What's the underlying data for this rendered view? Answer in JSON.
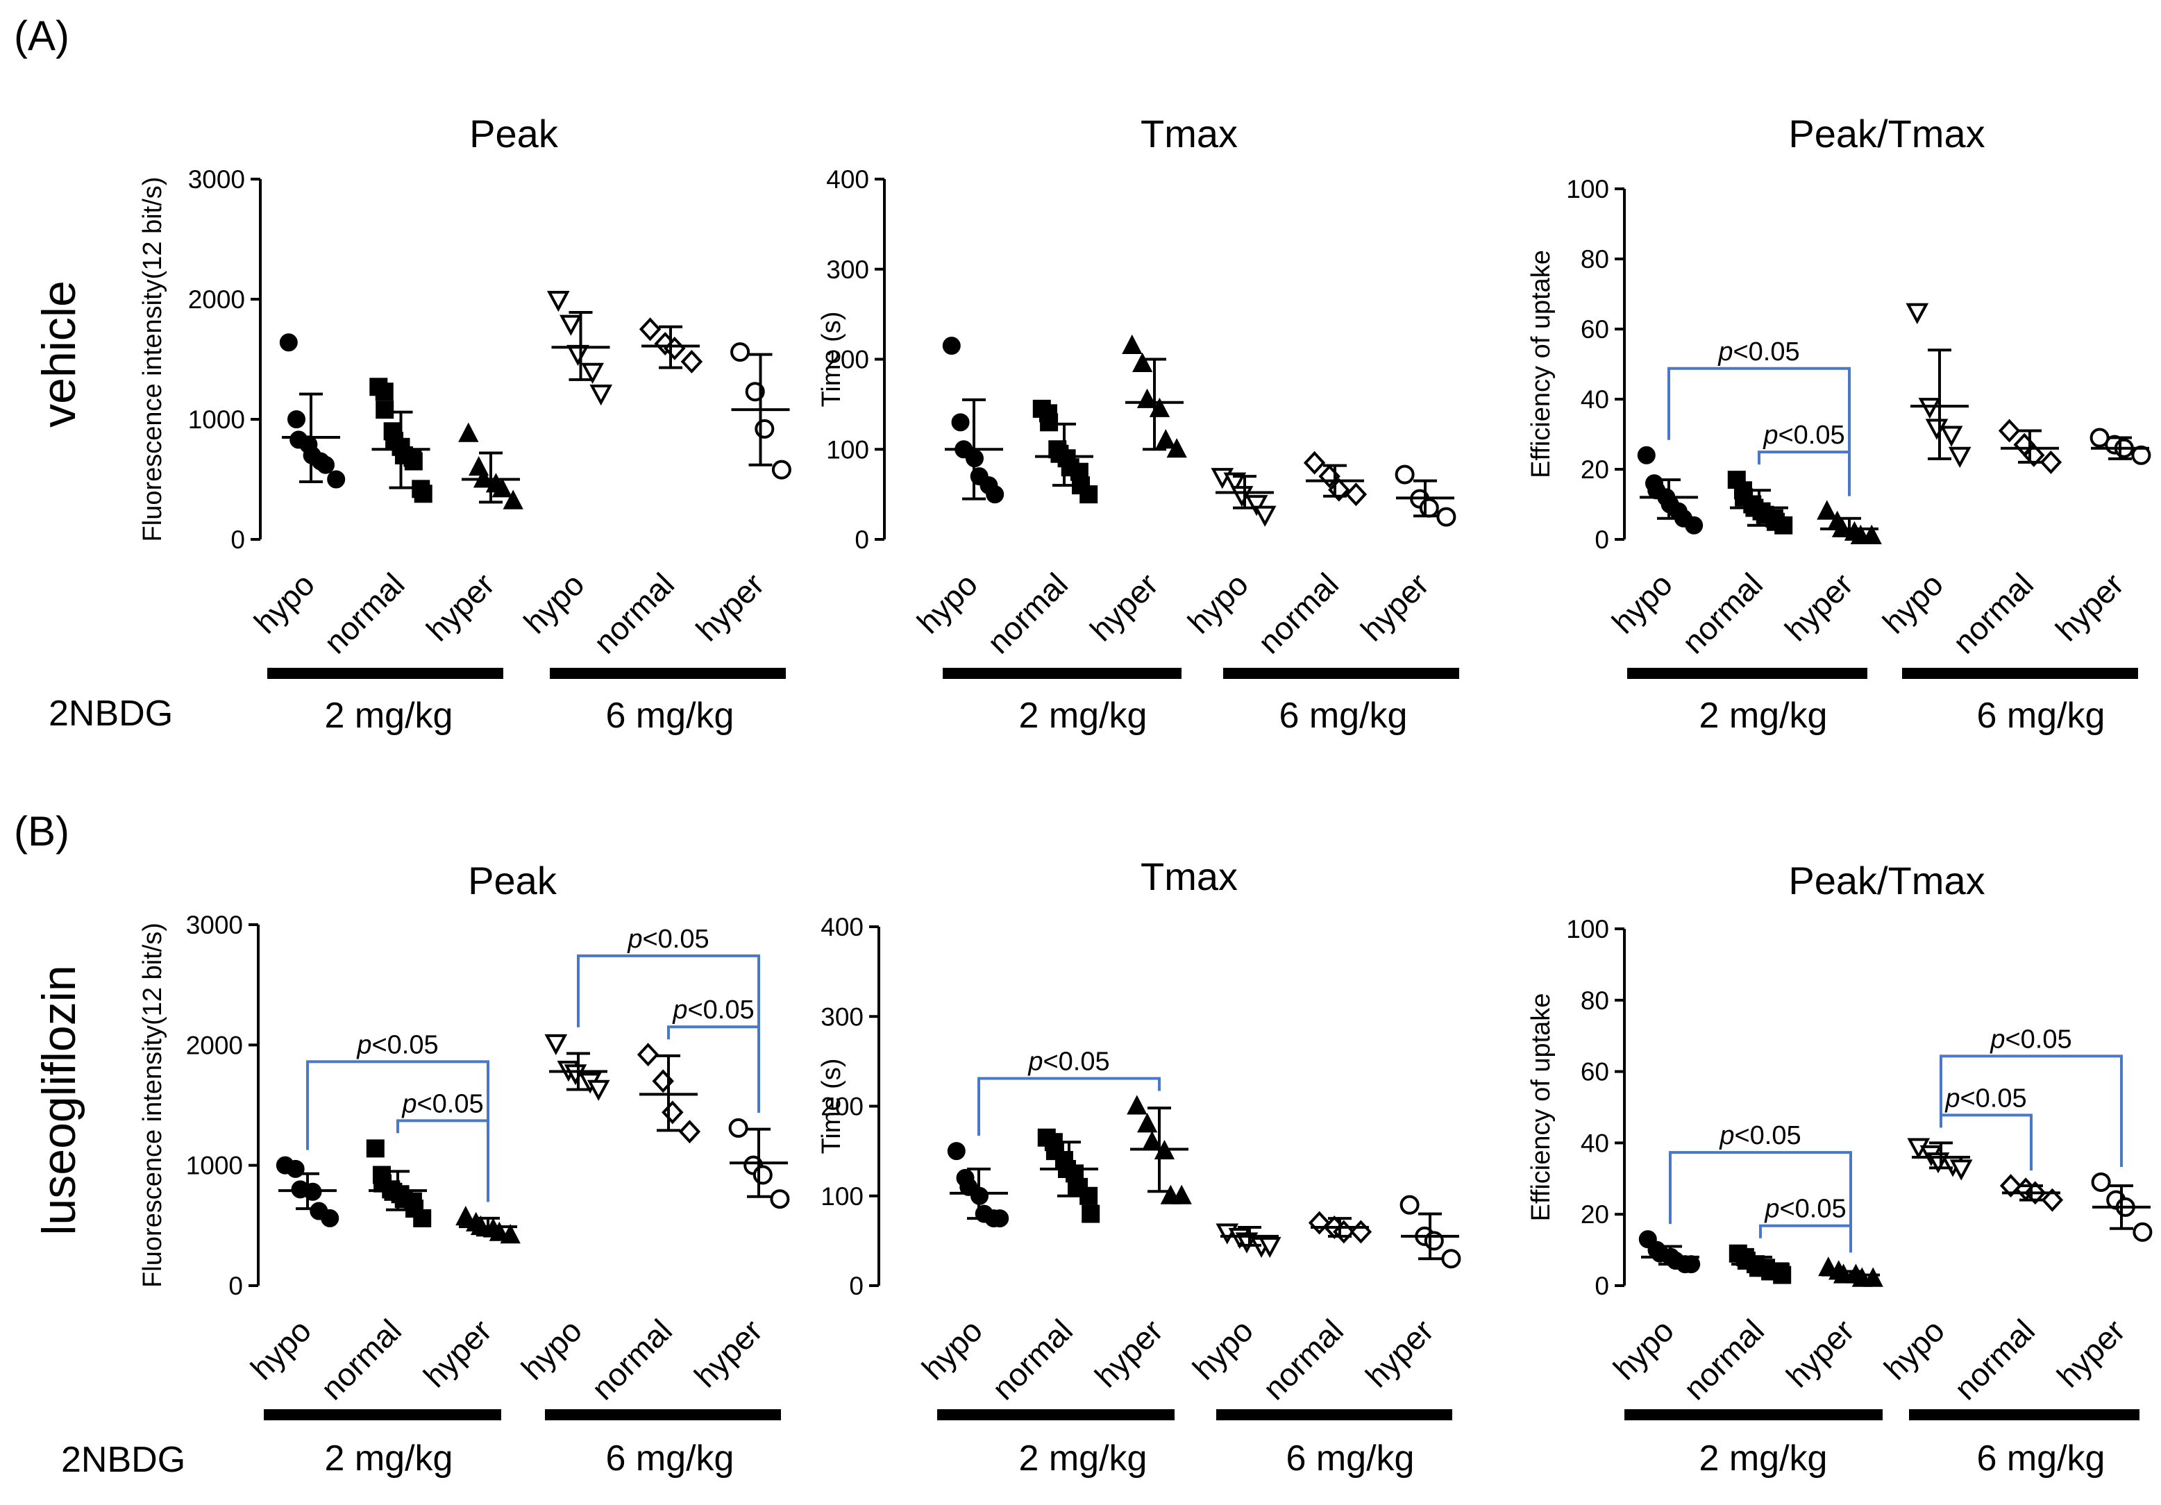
{
  "panel_labels": [
    "(A)",
    "(B)"
  ],
  "row_labels": [
    "vehicle",
    "luseogliflozin"
  ],
  "compound_label": "2NBDG",
  "doses": [
    "2 mg/kg",
    "6 mg/kg"
  ],
  "categories": [
    "hypo",
    "normal",
    "hyper",
    "hypo",
    "normal",
    "hyper"
  ],
  "significance_text": "p<0.05",
  "chart_data": [
    {
      "type": "scatter",
      "row": "vehicle",
      "title": "Peak",
      "ylabel": "Fluorescence intensity(12 bit/s)",
      "ylim": [
        0,
        3000
      ],
      "yticks": [
        0,
        1000,
        2000,
        3000
      ],
      "groups": [
        {
          "name": "hypo",
          "dose": "2 mg/kg",
          "marker": "circle-filled",
          "mean": 850,
          "err": [
            480,
            1210
          ],
          "points": [
            1640,
            1000,
            830,
            790,
            700,
            650,
            620,
            500
          ]
        },
        {
          "name": "normal",
          "dose": "2 mg/kg",
          "marker": "square-filled",
          "mean": 750,
          "err": [
            430,
            1060
          ],
          "points": [
            1270,
            1230,
            1080,
            900,
            820,
            770,
            700,
            680,
            650,
            420,
            380
          ]
        },
        {
          "name": "hyper",
          "dose": "2 mg/kg",
          "marker": "triangle-filled",
          "mean": 500,
          "err": [
            310,
            720
          ],
          "points": [
            880,
            600,
            500,
            460,
            420,
            320
          ]
        },
        {
          "name": "hypo",
          "dose": "6 mg/kg",
          "marker": "triangle-down-open",
          "mean": 1600,
          "err": [
            1330,
            1890
          ],
          "points": [
            2000,
            1800,
            1550,
            1400,
            1220
          ]
        },
        {
          "name": "normal",
          "dose": "6 mg/kg",
          "marker": "diamond-open",
          "mean": 1610,
          "err": [
            1430,
            1770
          ],
          "points": [
            1750,
            1630,
            1590,
            1480
          ]
        },
        {
          "name": "hyper",
          "dose": "6 mg/kg",
          "marker": "circle-open",
          "mean": 1080,
          "err": [
            620,
            1540
          ],
          "points": [
            1560,
            1230,
            920,
            580
          ]
        }
      ],
      "comparisons": []
    },
    {
      "type": "scatter",
      "row": "vehicle",
      "title": "Tmax",
      "ylabel": "Time (s)",
      "ylim": [
        0,
        400
      ],
      "yticks": [
        0,
        100,
        200,
        300,
        400
      ],
      "groups": [
        {
          "name": "hypo",
          "dose": "2 mg/kg",
          "marker": "circle-filled",
          "mean": 100,
          "err": [
            45,
            155
          ],
          "points": [
            215,
            130,
            100,
            90,
            70,
            60,
            50
          ]
        },
        {
          "name": "normal",
          "dose": "2 mg/kg",
          "marker": "square-filled",
          "mean": 92,
          "err": [
            60,
            128
          ],
          "points": [
            145,
            140,
            130,
            100,
            95,
            90,
            80,
            75,
            60,
            50
          ]
        },
        {
          "name": "hyper",
          "dose": "2 mg/kg",
          "marker": "triangle-filled",
          "mean": 152,
          "err": [
            100,
            200
          ],
          "points": [
            215,
            195,
            155,
            145,
            110,
            100
          ]
        },
        {
          "name": "hypo",
          "dose": "6 mg/kg",
          "marker": "triangle-down-open",
          "mean": 52,
          "err": [
            35,
            70
          ],
          "points": [
            70,
            65,
            50,
            40,
            28
          ]
        },
        {
          "name": "normal",
          "dose": "6 mg/kg",
          "marker": "diamond-open",
          "mean": 65,
          "err": [
            48,
            82
          ],
          "points": [
            85,
            70,
            55,
            50
          ]
        },
        {
          "name": "hyper",
          "dose": "6 mg/kg",
          "marker": "circle-open",
          "mean": 46,
          "err": [
            26,
            65
          ],
          "points": [
            72,
            45,
            35,
            25
          ]
        }
      ],
      "comparisons": []
    },
    {
      "type": "scatter",
      "row": "vehicle",
      "title": "Peak/Tmax",
      "ylabel": "Efficiency of uptake",
      "ylim": [
        0,
        100
      ],
      "yticks": [
        0,
        20,
        40,
        60,
        80,
        100
      ],
      "groups": [
        {
          "name": "hypo",
          "dose": "2 mg/kg",
          "marker": "circle-filled",
          "mean": 12,
          "err": [
            6,
            17
          ],
          "points": [
            24,
            16,
            14,
            12,
            10,
            8,
            6,
            4
          ]
        },
        {
          "name": "normal",
          "dose": "2 mg/kg",
          "marker": "square-filled",
          "mean": 9,
          "err": [
            4,
            14
          ],
          "points": [
            17,
            14,
            12,
            10,
            9,
            8,
            7,
            6,
            5,
            4
          ]
        },
        {
          "name": "hyper",
          "dose": "2 mg/kg",
          "marker": "triangle-filled",
          "mean": 3,
          "err": [
            1,
            6
          ],
          "points": [
            8,
            5,
            3,
            2,
            1,
            1
          ]
        },
        {
          "name": "hypo",
          "dose": "6 mg/kg",
          "marker": "triangle-down-open",
          "mean": 38,
          "err": [
            23,
            54
          ],
          "points": [
            65,
            38,
            32,
            30,
            24
          ]
        },
        {
          "name": "normal",
          "dose": "6 mg/kg",
          "marker": "diamond-open",
          "mean": 26,
          "err": [
            22,
            31
          ],
          "points": [
            31,
            27,
            24,
            22
          ]
        },
        {
          "name": "hyper",
          "dose": "6 mg/kg",
          "marker": "circle-open",
          "mean": 26,
          "err": [
            23,
            29
          ],
          "points": [
            29,
            27,
            26,
            24
          ]
        }
      ],
      "comparisons": [
        {
          "from": 0,
          "to": 2,
          "label": "p<0.05",
          "level": 1
        },
        {
          "from": 1,
          "to": 2,
          "label": "p<0.05",
          "level": 0
        }
      ]
    },
    {
      "type": "scatter",
      "row": "luseogliflozin",
      "title": "Peak",
      "ylabel": "Fluorescence intensity(12 bit/s)",
      "ylim": [
        0,
        3000
      ],
      "yticks": [
        0,
        1000,
        2000,
        3000
      ],
      "groups": [
        {
          "name": "hypo",
          "dose": "2 mg/kg",
          "marker": "circle-filled",
          "mean": 790,
          "err": [
            640,
            930
          ],
          "points": [
            1000,
            970,
            800,
            780,
            620,
            560
          ]
        },
        {
          "name": "normal",
          "dose": "2 mg/kg",
          "marker": "square-filled",
          "mean": 790,
          "err": [
            630,
            950
          ],
          "points": [
            1140,
            920,
            850,
            800,
            780,
            760,
            720,
            700,
            640,
            560
          ]
        },
        {
          "name": "hyper",
          "dose": "2 mg/kg",
          "marker": "triangle-filled",
          "mean": 490,
          "err": [
            420,
            560
          ],
          "points": [
            570,
            520,
            490,
            470,
            440,
            420
          ]
        },
        {
          "name": "hypo",
          "dose": "6 mg/kg",
          "marker": "triangle-down-open",
          "mean": 1780,
          "err": [
            1630,
            1930
          ],
          "points": [
            2020,
            1800,
            1770,
            1700,
            1640
          ]
        },
        {
          "name": "normal",
          "dose": "6 mg/kg",
          "marker": "diamond-open",
          "mean": 1590,
          "err": [
            1290,
            1910
          ],
          "points": [
            1920,
            1700,
            1440,
            1280
          ]
        },
        {
          "name": "hyper",
          "dose": "6 mg/kg",
          "marker": "circle-open",
          "mean": 1020,
          "err": [
            740,
            1300
          ],
          "points": [
            1310,
            1000,
            920,
            720
          ]
        }
      ],
      "comparisons": [
        {
          "from": 0,
          "to": 2,
          "label": "p<0.05",
          "level": 1
        },
        {
          "from": 1,
          "to": 2,
          "label": "p<0.05",
          "level": 0
        },
        {
          "from": 3,
          "to": 5,
          "label": "p<0.05",
          "level": 1
        },
        {
          "from": 4,
          "to": 5,
          "label": "p<0.05",
          "level": 0
        }
      ]
    },
    {
      "type": "scatter",
      "row": "luseogliflozin",
      "title": "Tmax",
      "ylabel": "Time (s)",
      "ylim": [
        0,
        400
      ],
      "yticks": [
        0,
        100,
        200,
        300,
        400
      ],
      "groups": [
        {
          "name": "hypo",
          "dose": "2 mg/kg",
          "marker": "circle-filled",
          "mean": 103,
          "err": [
            75,
            130
          ],
          "points": [
            150,
            120,
            110,
            100,
            80,
            75,
            75
          ]
        },
        {
          "name": "normal",
          "dose": "2 mg/kg",
          "marker": "square-filled",
          "mean": 130,
          "err": [
            100,
            160
          ],
          "points": [
            165,
            160,
            150,
            140,
            130,
            125,
            110,
            100,
            80
          ]
        },
        {
          "name": "hyper",
          "dose": "2 mg/kg",
          "marker": "triangle-filled",
          "mean": 152,
          "err": [
            105,
            198
          ],
          "points": [
            200,
            180,
            160,
            150,
            100,
            100
          ]
        },
        {
          "name": "hypo",
          "dose": "6 mg/kg",
          "marker": "triangle-down-open",
          "mean": 55,
          "err": [
            45,
            65
          ],
          "points": [
            60,
            55,
            50,
            45,
            45
          ]
        },
        {
          "name": "normal",
          "dose": "6 mg/kg",
          "marker": "diamond-open",
          "mean": 65,
          "err": [
            55,
            75
          ],
          "points": [
            70,
            65,
            60,
            60
          ]
        },
        {
          "name": "hyper",
          "dose": "6 mg/kg",
          "marker": "circle-open",
          "mean": 55,
          "err": [
            30,
            80
          ],
          "points": [
            90,
            55,
            50,
            30
          ]
        }
      ],
      "comparisons": [
        {
          "from": 0,
          "to": 2,
          "label": "p<0.05",
          "level": 0
        }
      ]
    },
    {
      "type": "scatter",
      "row": "luseogliflozin",
      "title": "Peak/Tmax",
      "ylabel": "Efficiency of uptake",
      "ylim": [
        0,
        100
      ],
      "yticks": [
        0,
        20,
        40,
        60,
        80,
        100
      ],
      "groups": [
        {
          "name": "hypo",
          "dose": "2 mg/kg",
          "marker": "circle-filled",
          "mean": 8,
          "err": [
            6,
            11
          ],
          "points": [
            13,
            10,
            9,
            8,
            7,
            6,
            6
          ]
        },
        {
          "name": "normal",
          "dose": "2 mg/kg",
          "marker": "square-filled",
          "mean": 6,
          "err": [
            4,
            8
          ],
          "points": [
            9,
            8,
            7,
            6,
            5,
            5,
            4,
            4,
            3
          ]
        },
        {
          "name": "hyper",
          "dose": "2 mg/kg",
          "marker": "triangle-filled",
          "mean": 3,
          "err": [
            2,
            4
          ],
          "points": [
            5,
            4,
            3,
            3,
            2,
            2
          ]
        },
        {
          "name": "hypo",
          "dose": "6 mg/kg",
          "marker": "triangle-down-open",
          "mean": 36,
          "err": [
            33,
            40
          ],
          "points": [
            39,
            37,
            35,
            34,
            33
          ]
        },
        {
          "name": "normal",
          "dose": "6 mg/kg",
          "marker": "diamond-open",
          "mean": 26,
          "err": [
            24,
            28
          ],
          "points": [
            28,
            27,
            26,
            24
          ]
        },
        {
          "name": "hyper",
          "dose": "6 mg/kg",
          "marker": "circle-open",
          "mean": 22,
          "err": [
            16,
            28
          ],
          "points": [
            29,
            24,
            22,
            15
          ]
        }
      ],
      "comparisons": [
        {
          "from": 0,
          "to": 2,
          "label": "p<0.05",
          "level": 1
        },
        {
          "from": 1,
          "to": 2,
          "label": "p<0.05",
          "level": 0
        },
        {
          "from": 3,
          "to": 5,
          "label": "p<0.05",
          "level": 1
        },
        {
          "from": 3,
          "to": 4,
          "label": "p<0.05",
          "level": 0
        }
      ]
    }
  ]
}
